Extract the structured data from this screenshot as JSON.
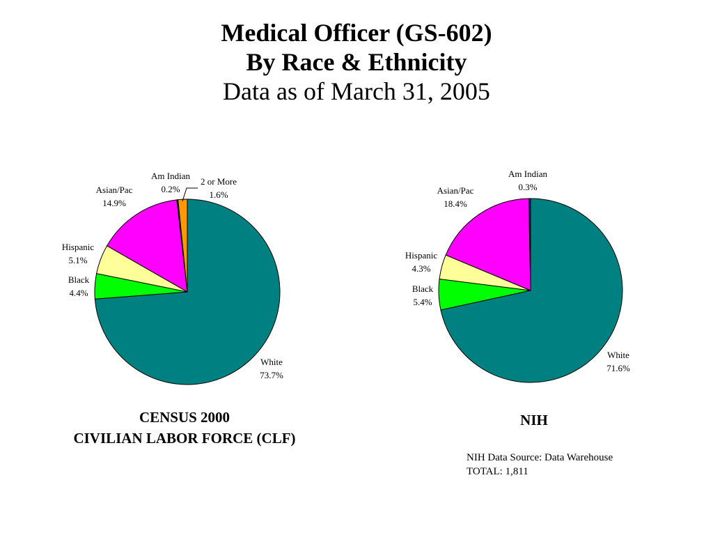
{
  "title": {
    "line1": "Medical Officer (GS-602)",
    "line2": "By Race & Ethnicity",
    "line3": "Data as of March 31, 2005"
  },
  "captions": {
    "left_line1": "CENSUS 2000",
    "left_line2": "CIVILIAN LABOR FORCE (CLF)",
    "right": "NIH"
  },
  "source": {
    "line1": "NIH Data Source: Data Warehouse",
    "line2": "TOTAL:  1,811"
  },
  "chart_data": [
    {
      "type": "pie",
      "title": "CENSUS 2000 CIVILIAN LABOR FORCE (CLF)",
      "slices": [
        {
          "name": "White",
          "value": 73.7,
          "label": "73.7%",
          "color": "#008080"
        },
        {
          "name": "Black",
          "value": 4.4,
          "label": "4.4%",
          "color": "#00ff00"
        },
        {
          "name": "Hispanic",
          "value": 5.1,
          "label": "5.1%",
          "color": "#ffff99"
        },
        {
          "name": "Asian/Pac",
          "value": 14.9,
          "label": "14.9%",
          "color": "#ff00ff"
        },
        {
          "name": "Am Indian",
          "value": 0.2,
          "label": "0.2%",
          "color": "#003366"
        },
        {
          "name": "2 or More",
          "value": 1.6,
          "label": "1.6%",
          "color": "#ff9900"
        }
      ]
    },
    {
      "type": "pie",
      "title": "NIH",
      "slices": [
        {
          "name": "White",
          "value": 71.6,
          "label": "71.6%",
          "color": "#008080"
        },
        {
          "name": "Black",
          "value": 5.4,
          "label": "5.4%",
          "color": "#00ff00"
        },
        {
          "name": "Hispanic",
          "value": 4.3,
          "label": "4.3%",
          "color": "#ffff99"
        },
        {
          "name": "Asian/Pac",
          "value": 18.4,
          "label": "18.4%",
          "color": "#ff00ff"
        },
        {
          "name": "Am Indian",
          "value": 0.3,
          "label": "0.3%",
          "color": "#003366"
        }
      ]
    }
  ]
}
